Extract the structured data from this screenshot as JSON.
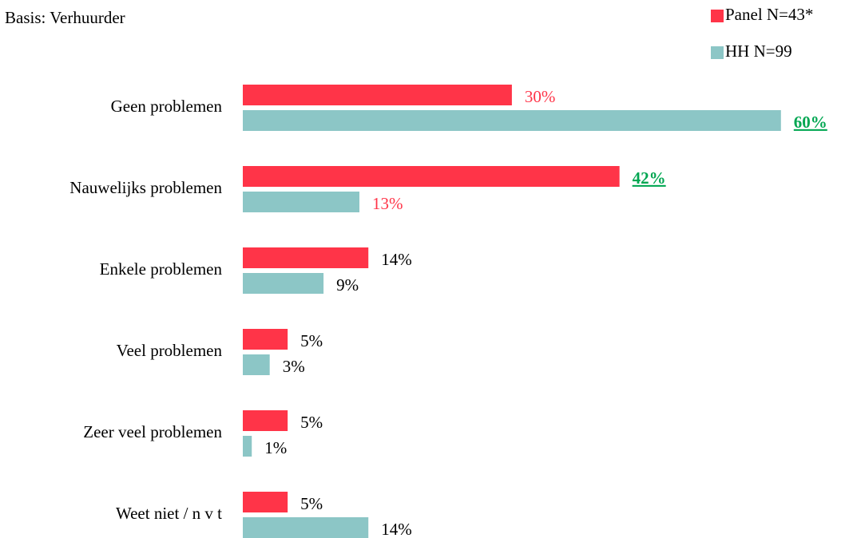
{
  "chart_data": {
    "type": "hbar",
    "subtitle": "Basis: Verhuurder",
    "categories": [
      "Geen problemen",
      "Nauwelijks problemen",
      "Enkele problemen",
      "Veel problemen",
      "Zeer veel problemen",
      "Weet niet / n v t"
    ],
    "series": [
      {
        "name": "Panel N=43*",
        "color": "#ff3448",
        "values": [
          30,
          42,
          14,
          5,
          5,
          5
        ],
        "value_labels": [
          "30%",
          "42%",
          "14%",
          "5%",
          "5%",
          "5%"
        ],
        "label_colors": [
          "#ff3448",
          "#00a651",
          "#000000",
          "#000000",
          "#000000",
          "#000000"
        ],
        "label_emphasis": [
          false,
          true,
          false,
          false,
          false,
          false
        ]
      },
      {
        "name": "HH N=99",
        "color": "#8cc6c6",
        "values": [
          60,
          13,
          9,
          3,
          1,
          14
        ],
        "value_labels": [
          "60%",
          "13%",
          "9%",
          "3%",
          "1%",
          "14%"
        ],
        "label_colors": [
          "#00a651",
          "#ff3448",
          "#000000",
          "#000000",
          "#000000",
          "#000000"
        ],
        "label_emphasis": [
          true,
          false,
          false,
          false,
          false,
          false
        ]
      }
    ],
    "legend": "top-right"
  }
}
